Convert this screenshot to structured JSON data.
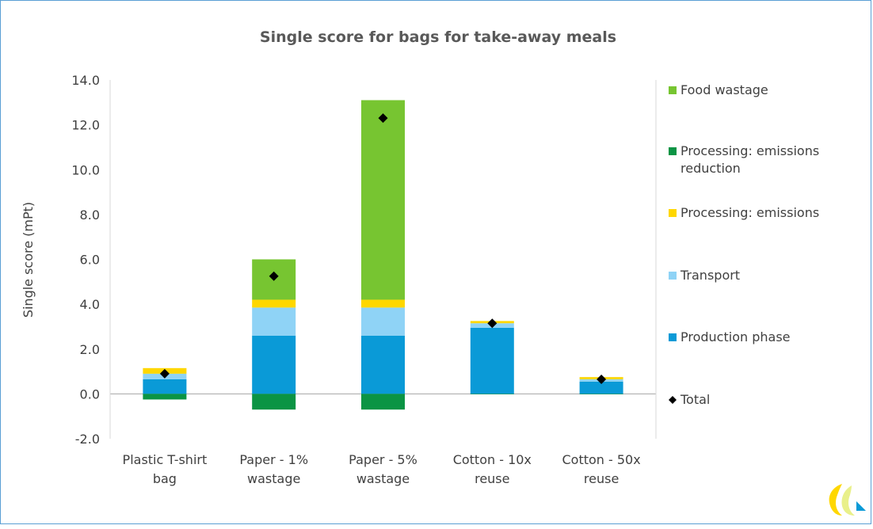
{
  "chart_data": {
    "type": "bar",
    "stacked": true,
    "title": "Single score for bags for take-away meals",
    "ylabel": "Single score (mPt)",
    "xlabel": "",
    "ylim": [
      -2.0,
      14.0
    ],
    "ytick_step": 2.0,
    "ytick_labels": [
      "-2.0",
      "0.0",
      "2.0",
      "4.0",
      "6.0",
      "8.0",
      "10.0",
      "12.0",
      "14.0"
    ],
    "gridlines": false,
    "legend_position": "right",
    "categories": [
      [
        "Plastic T-shirt",
        "bag"
      ],
      [
        "Paper - 1%",
        "wastage"
      ],
      [
        "Paper - 5%",
        "wastage"
      ],
      [
        "Cotton - 10x",
        "reuse"
      ],
      [
        "Cotton - 50x",
        "reuse"
      ]
    ],
    "series": [
      {
        "name": "Production phase",
        "color": "#0a9ad7",
        "values": [
          0.65,
          2.6,
          2.6,
          2.95,
          0.55
        ]
      },
      {
        "name": "Transport",
        "color": "#8fd3f6",
        "values": [
          0.25,
          1.25,
          1.25,
          0.2,
          0.1
        ]
      },
      {
        "name": "Processing: emissions",
        "color": "#ffd700",
        "values": [
          0.25,
          0.35,
          0.35,
          0.1,
          0.1
        ]
      },
      {
        "name": "Processing: emissions reduction",
        "color": "#0b9444",
        "values": [
          -0.25,
          -0.7,
          -0.7,
          -0.02,
          -0.02
        ]
      },
      {
        "name": "Food wastage",
        "color": "#77c531",
        "values": [
          0,
          1.8,
          8.9,
          0,
          0
        ]
      }
    ],
    "total": {
      "name": "Total",
      "color": "#000000",
      "values": [
        0.9,
        5.25,
        12.3,
        3.15,
        0.65
      ]
    },
    "legend_order": [
      {
        "name": "Food wastage",
        "lines": [
          "Food wastage"
        ],
        "color": "#77c531",
        "marker": "square"
      },
      {
        "name": "Processing: emissions reduction",
        "lines": [
          "Processing: emissions",
          "reduction"
        ],
        "color": "#0b9444",
        "marker": "square"
      },
      {
        "name": "Processing: emissions",
        "lines": [
          "Processing: emissions"
        ],
        "color": "#ffd700",
        "marker": "square"
      },
      {
        "name": "Transport",
        "lines": [
          "Transport"
        ],
        "color": "#8fd3f6",
        "marker": "square"
      },
      {
        "name": "Production phase",
        "lines": [
          "Production phase"
        ],
        "color": "#0a9ad7",
        "marker": "square"
      },
      {
        "name": "Total",
        "lines": [
          "Total"
        ],
        "color": "#000000",
        "marker": "diamond"
      }
    ]
  },
  "logo": {
    "name": "logo-icon",
    "colors": [
      "#ffd700",
      "#e9f08a",
      "#0a9ad7"
    ]
  }
}
